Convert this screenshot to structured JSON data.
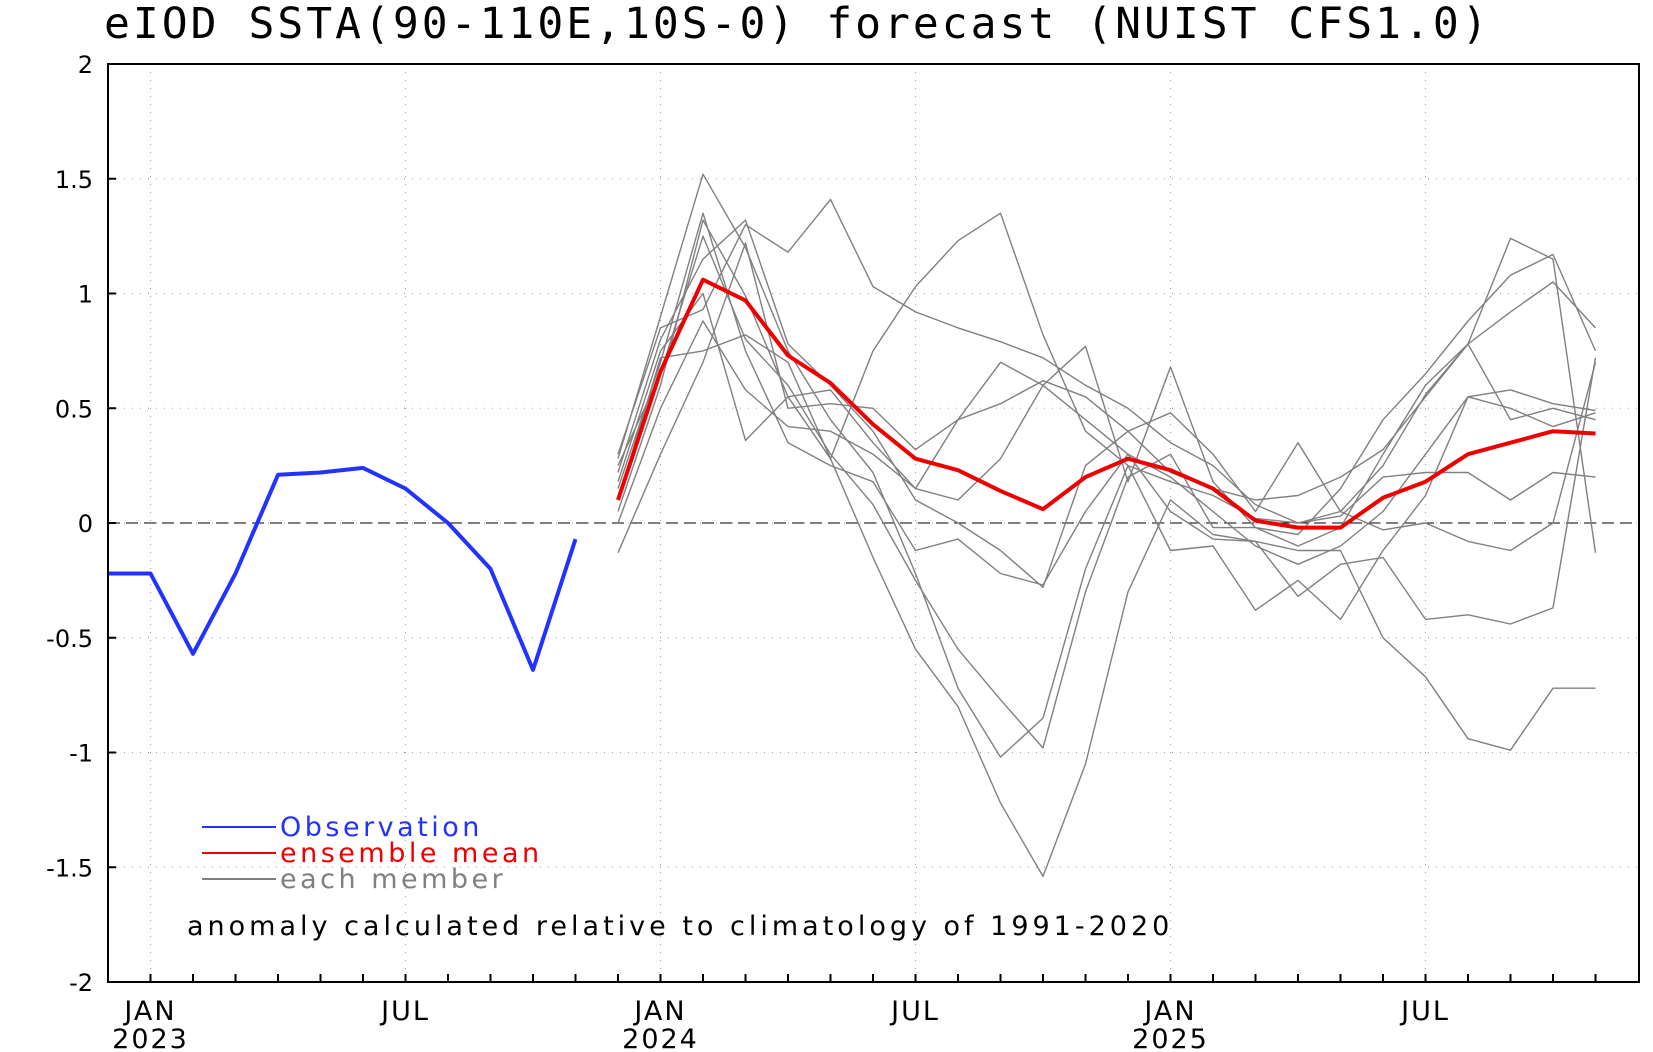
{
  "chart_data": {
    "type": "line",
    "title": "eIOD SSTA(90-110E,10S-0) forecast (NUIST CFS1.0)",
    "ylim": [
      -2,
      2
    ],
    "y_ticks": [
      2,
      1.5,
      1,
      0.5,
      0,
      -0.5,
      -1,
      -1.5,
      -2
    ],
    "y_tick_labels": [
      "2",
      "1.5",
      "1",
      "0.5",
      "0",
      "-0.5",
      "-1",
      "-1.5",
      "-2"
    ],
    "x_tick_labels": [
      {
        "month": "JAN",
        "year": "2023",
        "at": "2023-01"
      },
      {
        "month": "JUL",
        "year": "",
        "at": "2023-07"
      },
      {
        "month": "JAN",
        "year": "2024",
        "at": "2024-01"
      },
      {
        "month": "JUL",
        "year": "",
        "at": "2024-07"
      },
      {
        "month": "JAN",
        "year": "2025",
        "at": "2025-01"
      },
      {
        "month": "JUL",
        "year": "",
        "at": "2025-07"
      }
    ],
    "x_start": "2022-12",
    "x_end": "2025-11",
    "grid": "dotted",
    "zero_line": true,
    "series": [
      {
        "name": "Observation",
        "role": "observation",
        "color": "#2233ff",
        "start": "2022-12",
        "values": [
          -0.22,
          -0.22,
          -0.57,
          -0.22,
          0.21,
          0.22,
          0.24,
          0.15,
          0.0,
          -0.2,
          -0.64,
          -0.07
        ]
      },
      {
        "name": "ensemble mean",
        "role": "mean",
        "color": "#ee0000",
        "start": "2023-12",
        "values": [
          0.1,
          0.66,
          1.06,
          0.97,
          0.73,
          0.61,
          0.43,
          0.28,
          0.23,
          0.14,
          0.06,
          0.2,
          0.28,
          0.23,
          0.15,
          0.01,
          -0.02,
          -0.02,
          0.11,
          0.18,
          0.3,
          0.35,
          0.4,
          0.39
        ]
      },
      {
        "name": "each member",
        "role": "members",
        "color": "#808080",
        "start": "2023-12",
        "members": [
          [
            0.28,
            0.9,
            1.52,
            1.2,
            0.75,
            0.45,
            0.22,
            -0.22,
            -0.72,
            -1.02,
            -0.85,
            -0.2,
            0.25,
            -0.12,
            -0.1,
            -0.38,
            -0.25,
            -0.42,
            -0.12,
            0.12,
            0.55,
            0.58,
            0.52,
            0.49
          ],
          [
            0.05,
            0.6,
            1.32,
            0.99,
            0.55,
            0.28,
            -0.15,
            -0.55,
            -0.8,
            -1.22,
            -1.54,
            -1.05,
            -0.3,
            0.1,
            -0.05,
            -0.08,
            -0.32,
            -0.18,
            -0.15,
            -0.42,
            -0.4,
            -0.44,
            -0.37,
            0.72
          ],
          [
            0.22,
            0.8,
            1.15,
            1.32,
            0.78,
            0.6,
            0.4,
            0.1,
            0.0,
            -0.12,
            -0.28,
            0.25,
            0.4,
            0.48,
            0.3,
            0.05,
            0.35,
            0.05,
            -0.03,
            0.0,
            -0.08,
            -0.12,
            0.0,
            0.7
          ],
          [
            0.15,
            0.7,
            1.35,
            0.75,
            0.35,
            0.25,
            0.18,
            -0.12,
            -0.07,
            -0.22,
            -0.27,
            0.05,
            0.3,
            0.05,
            -0.07,
            -0.08,
            -0.12,
            -0.12,
            -0.5,
            -0.67,
            -0.94,
            -0.99,
            -0.72,
            -0.72
          ],
          [
            0.3,
            0.85,
            0.93,
            1.3,
            1.18,
            1.41,
            1.03,
            0.92,
            0.85,
            0.79,
            0.72,
            0.6,
            0.5,
            0.35,
            0.25,
            0.08,
            0.0,
            0.05,
            0.25,
            0.56,
            0.78,
            0.45,
            0.5,
            0.45
          ],
          [
            0.0,
            0.5,
            0.88,
            0.58,
            0.42,
            0.4,
            0.3,
            0.15,
            0.45,
            0.7,
            0.6,
            0.45,
            0.3,
            0.2,
            0.05,
            -0.1,
            -0.18,
            -0.1,
            0.05,
            0.3,
            0.55,
            0.5,
            0.42,
            0.48
          ],
          [
            -0.13,
            0.3,
            0.7,
            1.22,
            0.5,
            0.52,
            0.5,
            0.32,
            0.45,
            0.52,
            0.62,
            0.55,
            0.4,
            0.22,
            0.15,
            0.1,
            0.12,
            0.2,
            0.32,
            0.55,
            0.78,
            0.92,
            1.05,
            0.85
          ],
          [
            0.18,
            0.75,
            1.0,
            0.36,
            0.55,
            0.58,
            0.35,
            0.15,
            0.1,
            0.28,
            0.6,
            0.77,
            0.18,
            0.68,
            0.18,
            -0.02,
            -0.05,
            0.15,
            0.45,
            0.65,
            0.88,
            1.08,
            1.17,
            0.75
          ],
          [
            0.25,
            0.65,
            1.25,
            0.8,
            0.6,
            0.3,
            0.08,
            -0.25,
            -0.55,
            -0.77,
            -0.98,
            -0.3,
            0.2,
            0.3,
            -0.02,
            -0.02,
            -0.1,
            -0.02,
            0.3,
            0.6,
            0.78,
            1.24,
            1.15,
            -0.13
          ],
          [
            0.1,
            0.72,
            0.75,
            0.82,
            0.7,
            0.28,
            0.75,
            1.03,
            1.23,
            1.35,
            0.82,
            0.4,
            0.25,
            0.18,
            0.12,
            0.02,
            0.0,
            0.03,
            0.2,
            0.22,
            0.22,
            0.1,
            0.22,
            0.2
          ]
        ]
      }
    ],
    "legend": {
      "placement": "bottom-left",
      "entries": [
        "Observation",
        "ensemble mean",
        "each member"
      ]
    },
    "annotation": "anomaly calculated relative to climatology of 1991-2020"
  }
}
